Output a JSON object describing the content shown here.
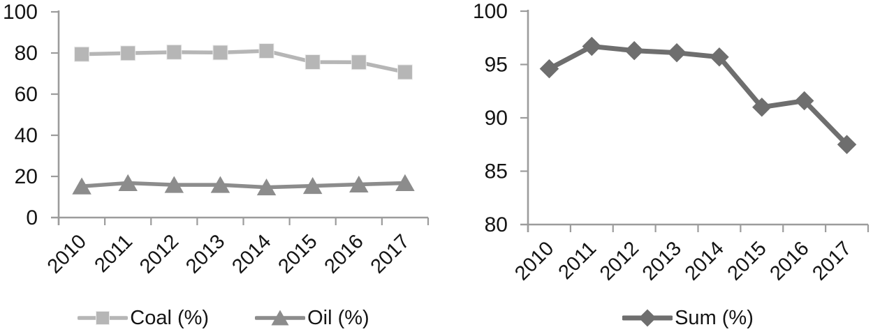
{
  "figure": {
    "background": "#ffffff",
    "text_color": "#141414",
    "axis_color": "#9c9c9c"
  },
  "chart_data": [
    {
      "type": "line",
      "panel": "left",
      "title": "",
      "xlabel": "",
      "ylabel": "",
      "categories": [
        "2010",
        "2011",
        "2012",
        "2013",
        "2014",
        "2015",
        "2016",
        "2017"
      ],
      "series": [
        {
          "name": "Coal (%)",
          "marker": "square",
          "color": "#b6b6b6",
          "values": [
            79.4,
            79.9,
            80.4,
            80.2,
            81.0,
            75.6,
            75.5,
            70.7
          ]
        },
        {
          "name": "Oil (%)",
          "marker": "triangle",
          "color": "#8c8c8c",
          "values": [
            15.2,
            16.8,
            15.9,
            15.9,
            14.7,
            15.4,
            16.1,
            16.8
          ]
        }
      ],
      "ylim": [
        0,
        100
      ],
      "yticks": [
        0,
        20,
        40,
        60,
        80,
        100
      ],
      "grid": false,
      "legend_position": "bottom"
    },
    {
      "type": "line",
      "panel": "right",
      "title": "",
      "xlabel": "",
      "ylabel": "",
      "categories": [
        "2010",
        "2011",
        "2012",
        "2013",
        "2014",
        "2015",
        "2016",
        "2017"
      ],
      "series": [
        {
          "name": "Sum (%)",
          "marker": "diamond",
          "color": "#6e6e6e",
          "values": [
            94.6,
            96.7,
            96.3,
            96.1,
            95.7,
            91.0,
            91.6,
            87.5
          ]
        }
      ],
      "ylim": [
        80,
        100
      ],
      "yticks": [
        80,
        85,
        90,
        95,
        100
      ],
      "grid": false,
      "legend_position": "bottom"
    }
  ]
}
